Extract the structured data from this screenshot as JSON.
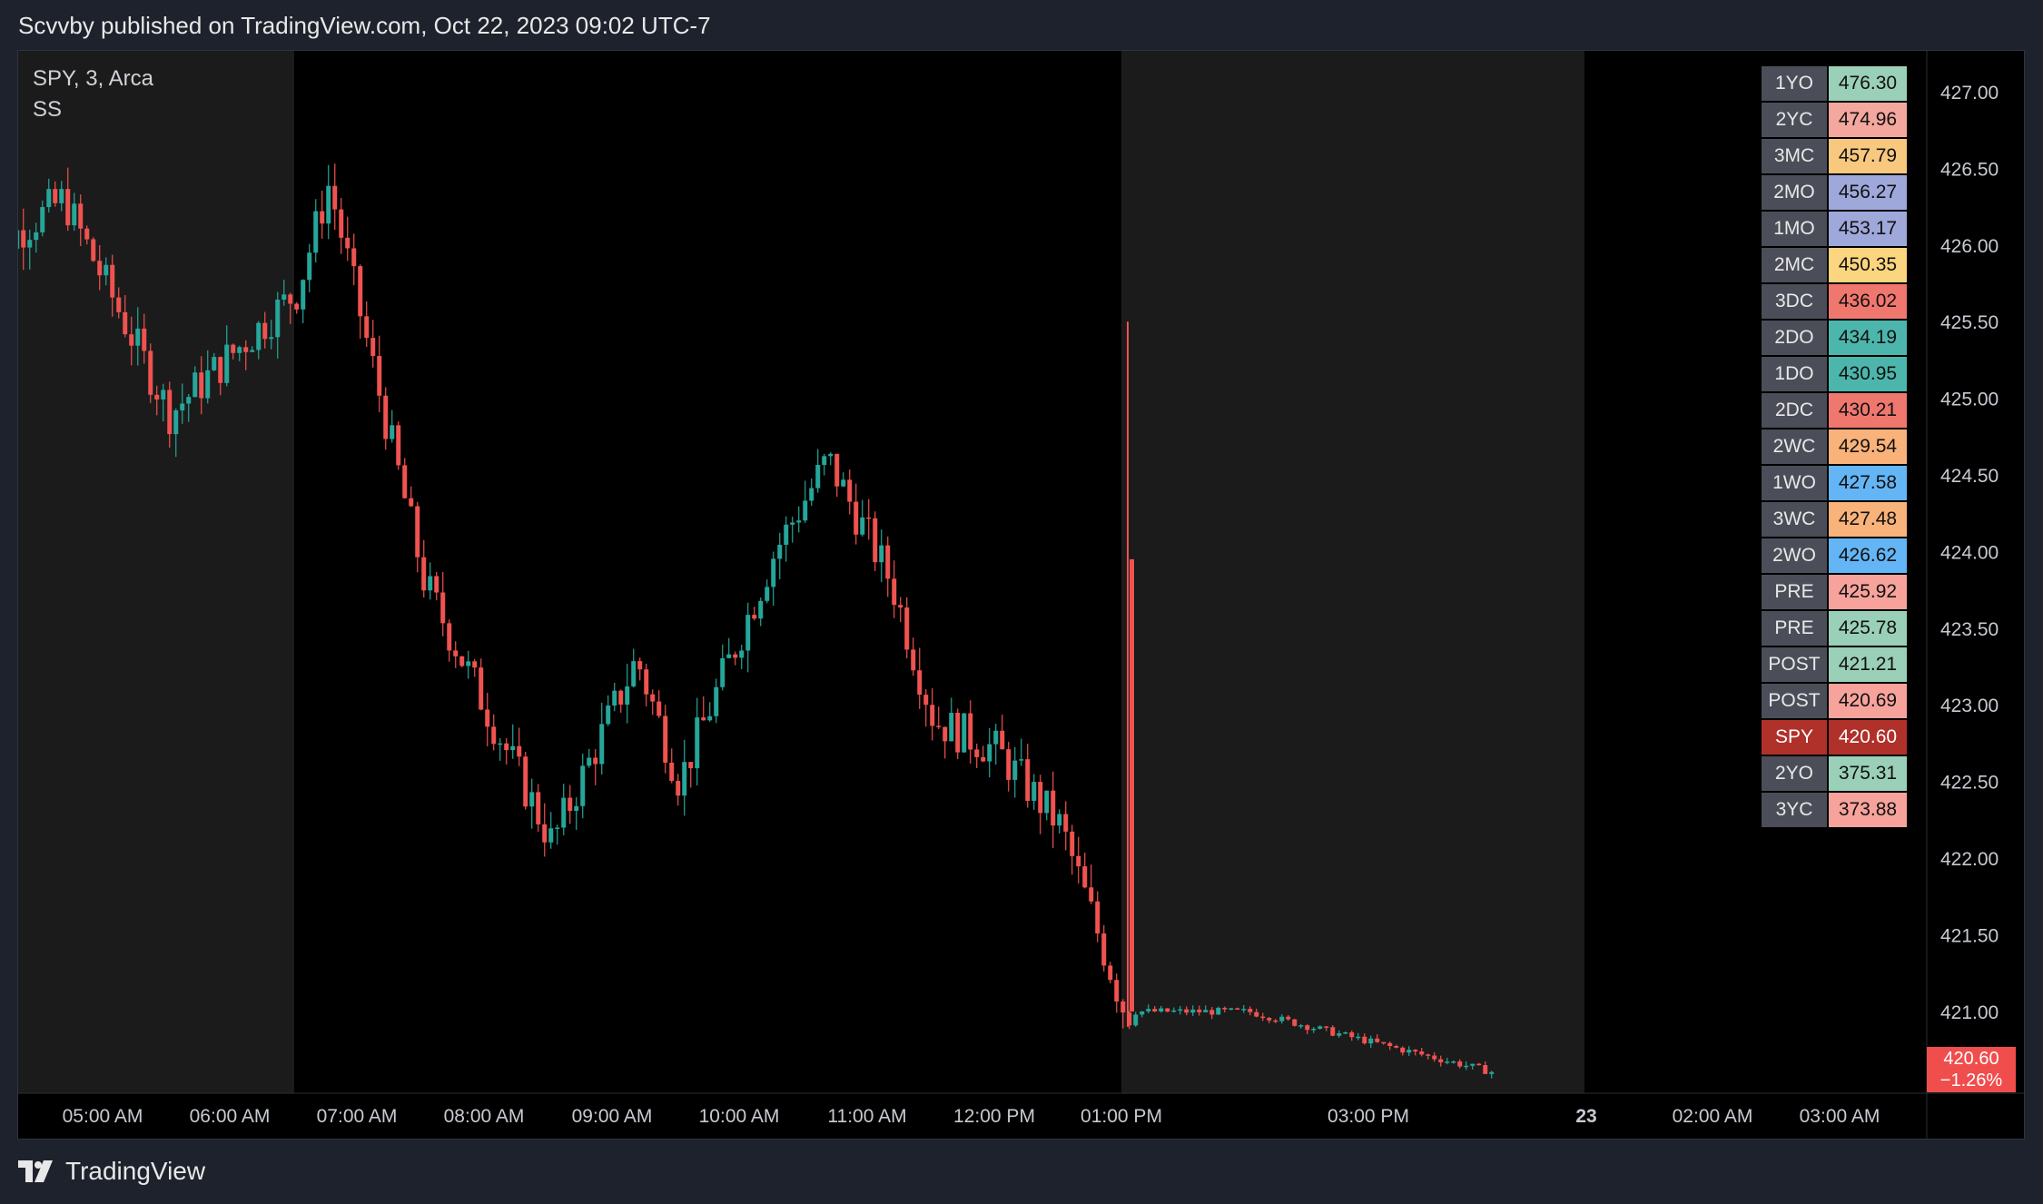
{
  "header": {
    "publish_line": "Scvvby published on TradingView.com, Oct 22, 2023 09:02 UTC-7"
  },
  "legend": {
    "symbol_line": "SPY, 3, Arca",
    "indicator": "SS"
  },
  "footer": {
    "brand": "TradingView"
  },
  "colors": {
    "up": "#26a69a",
    "down": "#ef5350",
    "session_shade": "#1b1b1b",
    "background": "#000000"
  },
  "chart_data": {
    "type": "candlestick",
    "symbol": "SPY",
    "y_ticks": [
      "427.00",
      "426.50",
      "426.00",
      "425.50",
      "425.00",
      "424.50",
      "424.00",
      "423.50",
      "423.00",
      "422.50",
      "422.00",
      "421.50",
      "421.00"
    ],
    "ylim": [
      420.6,
      427.3
    ],
    "x_ticks": [
      "05:00 AM",
      "06:00 AM",
      "07:00 AM",
      "08:00 AM",
      "09:00 AM",
      "10:00 AM",
      "11:00 AM",
      "12:00 PM",
      "01:00 PM",
      "03:00 PM",
      "23",
      "02:00 AM",
      "03:00 AM"
    ],
    "last_price": {
      "value": "420.60",
      "change": "−1.26%"
    },
    "key_points": [
      {
        "time": "04:00 AM",
        "price": 425.9
      },
      {
        "time": "04:40 AM",
        "price": 426.3
      },
      {
        "time": "05:30 AM",
        "price": 424.9
      },
      {
        "time": "06:30 AM",
        "price": 425.7
      },
      {
        "time": "06:45 AM",
        "price": 426.4
      },
      {
        "time": "07:30 AM",
        "price": 423.8
      },
      {
        "time": "08:30 AM",
        "price": 422.1
      },
      {
        "time": "09:10 AM",
        "price": 423.3
      },
      {
        "time": "09:30 AM",
        "price": 422.5
      },
      {
        "time": "10:15 AM",
        "price": 424.0
      },
      {
        "time": "10:40 AM",
        "price": 424.6
      },
      {
        "time": "11:10 AM",
        "price": 423.8
      },
      {
        "time": "11:30 AM",
        "price": 422.9
      },
      {
        "time": "12:00 PM",
        "price": 422.7
      },
      {
        "time": "12:30 PM",
        "price": 422.2
      },
      {
        "time": "01:00 PM",
        "price": 421.0
      },
      {
        "time": "02:00 PM",
        "price": 421.0
      },
      {
        "time": "03:00 PM",
        "price": 420.8
      },
      {
        "time": "04:00 PM",
        "price": 420.6
      }
    ]
  },
  "levels": [
    {
      "label": "1YO",
      "value": "476.30",
      "color": "#9ad0b8"
    },
    {
      "label": "2YC",
      "value": "474.96",
      "color": "#f4a79e"
    },
    {
      "label": "3MC",
      "value": "457.79",
      "color": "#f9c87f"
    },
    {
      "label": "2MO",
      "value": "456.27",
      "color": "#9fa8da"
    },
    {
      "label": "1MO",
      "value": "453.17",
      "color": "#9fa8da"
    },
    {
      "label": "2MC",
      "value": "450.35",
      "color": "#fbd57f"
    },
    {
      "label": "3DC",
      "value": "436.02",
      "color": "#f0776e"
    },
    {
      "label": "2DO",
      "value": "434.19",
      "color": "#4db6ac"
    },
    {
      "label": "1DO",
      "value": "430.95",
      "color": "#4db6ac"
    },
    {
      "label": "2DC",
      "value": "430.21",
      "color": "#f0776e"
    },
    {
      "label": "2WC",
      "value": "429.54",
      "color": "#f9b27a"
    },
    {
      "label": "1WO",
      "value": "427.58",
      "color": "#64b5f6"
    },
    {
      "label": "3WC",
      "value": "427.48",
      "color": "#f9b27a"
    },
    {
      "label": "2WO",
      "value": "426.62",
      "color": "#64b5f6"
    },
    {
      "label": "PRE",
      "value": "425.92",
      "color": "#f7a39c"
    },
    {
      "label": "PRE",
      "value": "425.78",
      "color": "#9ad0b8"
    },
    {
      "label": "POST",
      "value": "421.21",
      "color": "#9ad0b8"
    },
    {
      "label": "POST",
      "value": "420.69",
      "color": "#f7a39c"
    },
    {
      "label": "SPY",
      "value": "420.60",
      "color": "#b0302a",
      "highlight": true
    },
    {
      "label": "2YO",
      "value": "375.31",
      "color": "#9ad0b8"
    },
    {
      "label": "3YC",
      "value": "373.88",
      "color": "#f7a39c"
    }
  ]
}
